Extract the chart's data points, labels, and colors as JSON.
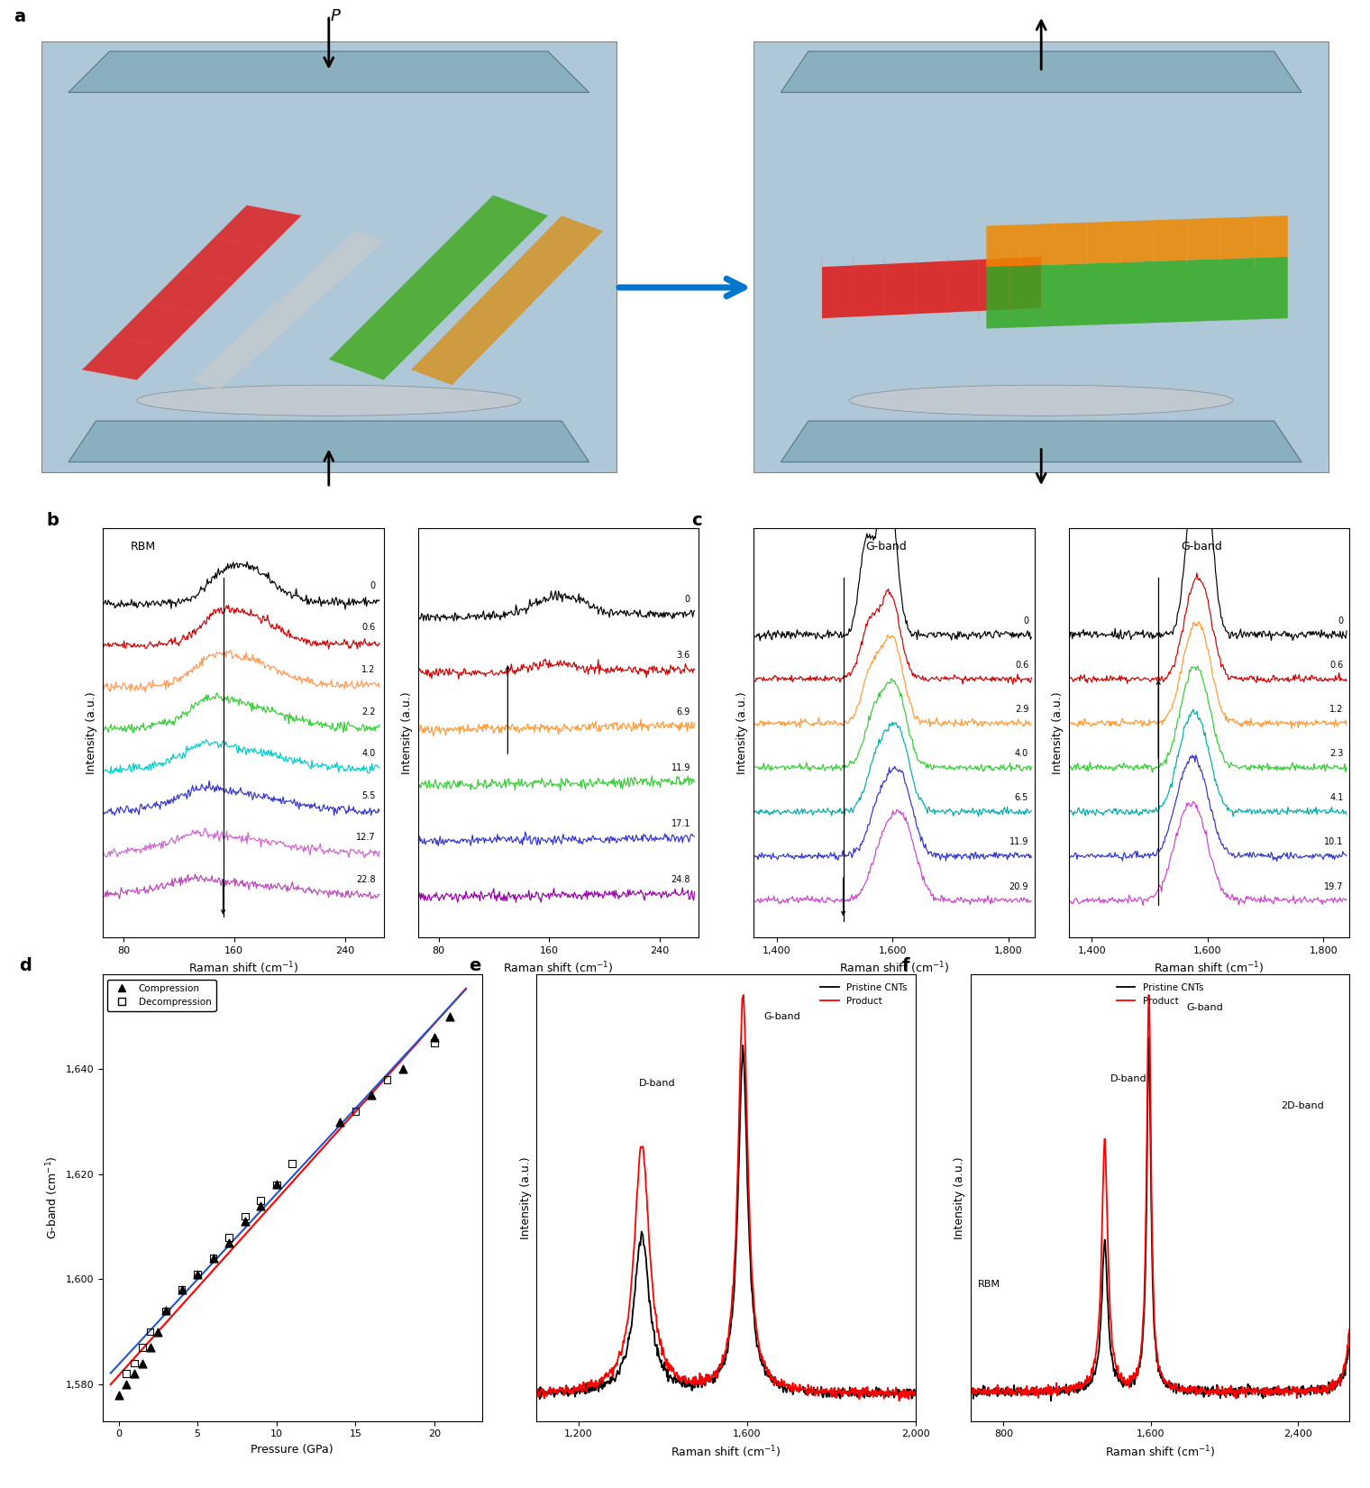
{
  "panel_b_left_labels": [
    "0",
    "0.6",
    "1.2",
    "2.2",
    "4.0",
    "5.5",
    "12.7",
    "22.8"
  ],
  "panel_b_left_colors": [
    "#000000",
    "#cc0000",
    "#ff9955",
    "#33cc33",
    "#00cccc",
    "#3333cc",
    "#cc66cc",
    "#bb44bb"
  ],
  "panel_b_right_labels": [
    "0",
    "3.6",
    "6.9",
    "11.9",
    "17.1",
    "24.8"
  ],
  "panel_b_right_colors": [
    "#000000",
    "#cc0000",
    "#ff9933",
    "#33cc33",
    "#3333cc",
    "#9900aa"
  ],
  "panel_c_left_labels": [
    "0",
    "0.6",
    "2.9",
    "4.0",
    "6.5",
    "11.9",
    "20.9"
  ],
  "panel_c_left_colors": [
    "#000000",
    "#cc0000",
    "#ff9933",
    "#33cc33",
    "#00aaaa",
    "#3333cc",
    "#cc44cc"
  ],
  "panel_c_right_labels": [
    "0",
    "0.6",
    "1.2",
    "2.3",
    "4.1",
    "10.1",
    "19.7"
  ],
  "panel_c_right_colors": [
    "#000000",
    "#cc0000",
    "#ff9933",
    "#33cc33",
    "#00aaaa",
    "#3333cc",
    "#cc44cc"
  ],
  "panel_d_compression_x": [
    0.0,
    0.5,
    1.0,
    1.5,
    2.0,
    2.5,
    3.0,
    4.0,
    5.0,
    6.0,
    7.0,
    8.0,
    9.0,
    10.0,
    14.0,
    16.0,
    18.0,
    20.0,
    21.0
  ],
  "panel_d_compression_y": [
    1578,
    1580,
    1582,
    1584,
    1587,
    1590,
    1594,
    1598,
    1601,
    1604,
    1607,
    1611,
    1614,
    1618,
    1630,
    1635,
    1640,
    1646,
    1650
  ],
  "panel_d_decompression_x": [
    0.5,
    1.0,
    1.5,
    2.0,
    3.0,
    4.0,
    5.0,
    6.0,
    7.0,
    8.0,
    9.0,
    10.0,
    11.0,
    15.0,
    17.0,
    20.0
  ],
  "panel_d_decompression_y": [
    1582,
    1584,
    1587,
    1590,
    1594,
    1598,
    1601,
    1604,
    1608,
    1612,
    1615,
    1618,
    1622,
    1632,
    1638,
    1645
  ],
  "background_color": "#ffffff",
  "axis_fontsize": 9,
  "tick_fontsize": 8,
  "label_fontsize": 14
}
